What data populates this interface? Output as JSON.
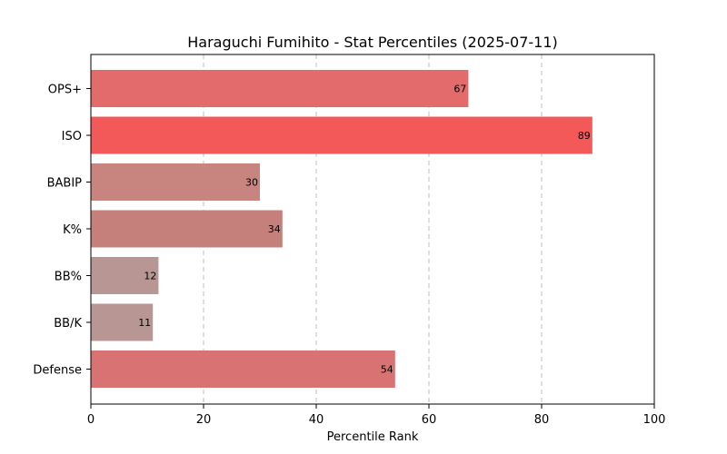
{
  "chart_data": {
    "type": "bar",
    "orientation": "horizontal",
    "title": "Haraguchi Fumihito - Stat Percentiles (2025-07-11)",
    "xlabel": "Percentile Rank",
    "ylabel": "",
    "xlim": [
      0,
      100
    ],
    "xticks": [
      "0",
      "20",
      "40",
      "60",
      "80",
      "100"
    ],
    "grid": "x-dashed",
    "categories": [
      "OPS+",
      "ISO",
      "BABIP",
      "K%",
      "BB%",
      "BB/K",
      "Defense"
    ],
    "values": [
      67,
      89,
      30,
      34,
      12,
      11,
      54
    ],
    "data_labels": [
      "67",
      "89",
      "30",
      "34",
      "12",
      "11",
      "54"
    ],
    "colors": [
      "#e36b6b",
      "#f35959",
      "#c8847f",
      "#c5807b",
      "#b89694",
      "#b89694",
      "#d97373"
    ]
  }
}
